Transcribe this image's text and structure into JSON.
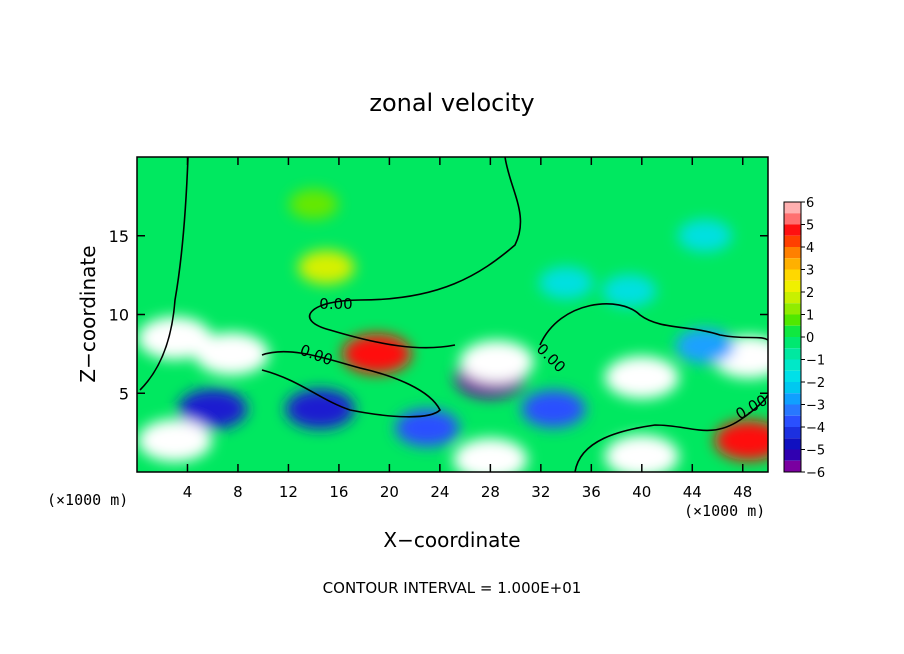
{
  "chart_data": {
    "type": "heatmap",
    "title": "zonal velocity",
    "xlabel": "X−coordinate",
    "ylabel": "Z−coordinate",
    "x_unit": "(×1000 m)",
    "x_ticks": [
      "4",
      "8",
      "12",
      "16",
      "20",
      "24",
      "28",
      "32",
      "36",
      "40",
      "44",
      "48"
    ],
    "y_ticks": [
      "5",
      "10",
      "15"
    ],
    "xlim": [
      0,
      50
    ],
    "ylim": [
      0,
      20
    ],
    "colorbar_ticks": [
      "6",
      "5",
      "4",
      "3",
      "2",
      "1",
      "0",
      "−1",
      "−2",
      "−3",
      "−4",
      "−5",
      "−6"
    ],
    "colorbar_range": [
      -6,
      6
    ],
    "contour_labels": [
      "0.00",
      "0.00",
      "0.00",
      "0.00"
    ],
    "footer": "CONTOUR INTERVAL = 1.000E+01",
    "background_color": "#00ee60",
    "features": [
      {
        "x": 15,
        "z": 13,
        "value": 2.5
      },
      {
        "x": 14,
        "z": 17,
        "value": 1
      },
      {
        "x": 6,
        "z": 4,
        "value": -5
      },
      {
        "x": 3,
        "z": 2,
        "value": 6
      },
      {
        "x": 3,
        "z": 8.5,
        "value": 6
      },
      {
        "x": 7.5,
        "z": 7.5,
        "value": 6
      },
      {
        "x": 14.5,
        "z": 4,
        "value": -5
      },
      {
        "x": 19,
        "z": 7.5,
        "value": 5
      },
      {
        "x": 23,
        "z": 2.8,
        "value": -4
      },
      {
        "x": 28,
        "z": 6,
        "value": -5.5
      },
      {
        "x": 28.5,
        "z": 7,
        "value": 6
      },
      {
        "x": 28,
        "z": 0.8,
        "value": 6
      },
      {
        "x": 40,
        "z": 6,
        "value": 6
      },
      {
        "x": 40,
        "z": 1,
        "value": 6
      },
      {
        "x": 48.5,
        "z": 7.3,
        "value": 6
      },
      {
        "x": 48.5,
        "z": 2,
        "value": 5
      },
      {
        "x": 45,
        "z": 8,
        "value": -3
      },
      {
        "x": 33,
        "z": 4,
        "value": -4
      },
      {
        "x": 39,
        "z": 11.5,
        "value": -2
      },
      {
        "x": 34,
        "z": 12,
        "value": -2
      },
      {
        "x": 45,
        "z": 15,
        "value": -2
      }
    ]
  }
}
